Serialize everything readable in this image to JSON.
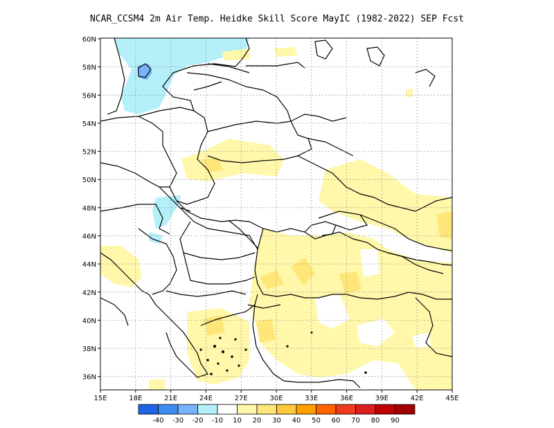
{
  "title": "NCAR_CCSM4  2m Air Temp. Heidke Skill Score MayIC (1982-2022) SEP Fcst",
  "map": {
    "lat_labels": [
      "60N",
      "58N",
      "56N",
      "54N",
      "52N",
      "50N",
      "48N",
      "46N",
      "44N",
      "42N",
      "40N",
      "38N",
      "36N"
    ],
    "lon_labels": [
      "15E",
      "18E",
      "21E",
      "24E",
      "27E",
      "30E",
      "33E",
      "36E",
      "39E",
      "42E",
      "45E"
    ],
    "lat_range": [
      35,
      60
    ],
    "lon_range": [
      15,
      45
    ],
    "grid": "dotted"
  },
  "colorbar": {
    "labels": [
      "-40",
      "-30",
      "-20",
      "-10",
      "10",
      "20",
      "30",
      "40",
      "50",
      "60",
      "70",
      "80",
      "90"
    ],
    "colors": [
      "#1e64e6",
      "#3c8cf0",
      "#78b4fa",
      "#b4f0fa",
      "#ffffff",
      "#fff8aa",
      "#ffe678",
      "#ffc83c",
      "#ffa000",
      "#ff6400",
      "#f03c1e",
      "#dc1e1e",
      "#c00000",
      "#a00000"
    ]
  }
}
